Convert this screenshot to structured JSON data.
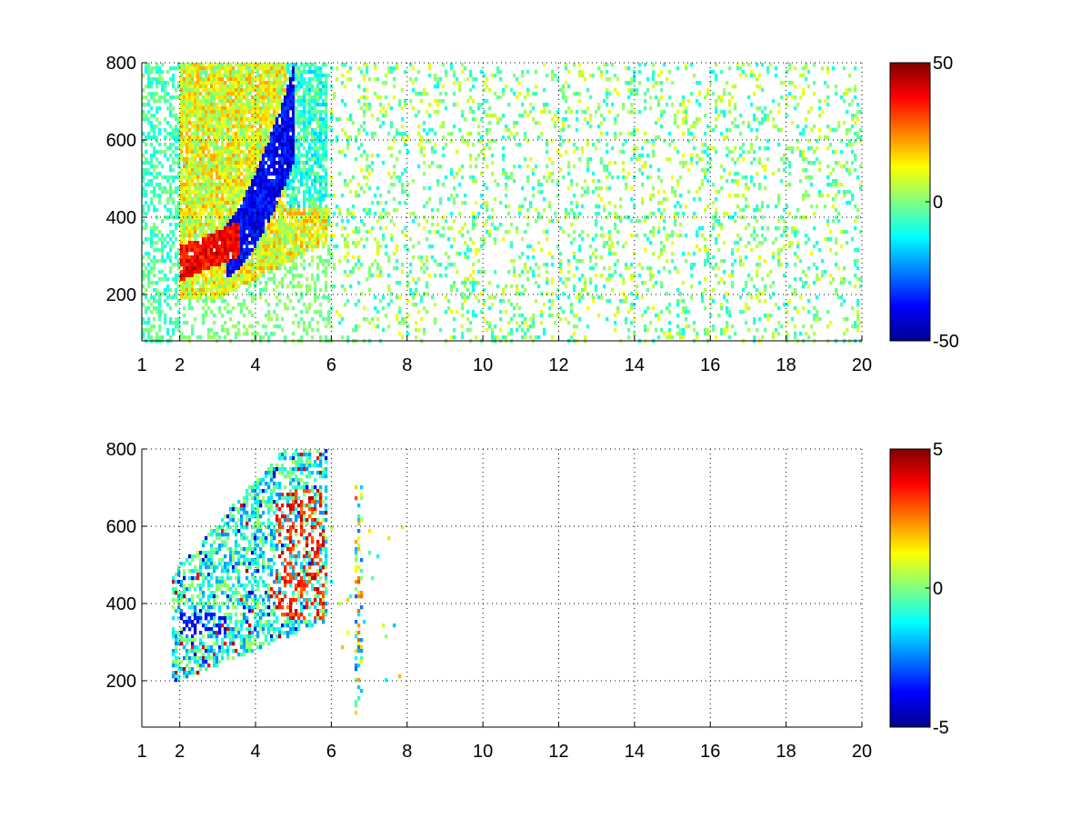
{
  "figure": {
    "background": "#ffffff",
    "colormap": "jet"
  },
  "chart_data": [
    {
      "type": "heatmap",
      "title": "",
      "xlabel": "",
      "ylabel": "",
      "xlim": [
        1,
        20
      ],
      "ylim": [
        80,
        800
      ],
      "x_ticks": [
        1,
        2,
        4,
        6,
        8,
        10,
        12,
        14,
        16,
        18,
        20
      ],
      "x_tick_labels": [
        "1",
        "2",
        "4",
        "6",
        "8",
        "10",
        "12",
        "14",
        "16",
        "18",
        "20"
      ],
      "y_ticks": [
        200,
        400,
        600,
        800
      ],
      "y_tick_labels": [
        "200",
        "400",
        "600",
        "800"
      ],
      "grid": true,
      "colorbar": {
        "range": [
          -50,
          50
        ],
        "ticks": [
          50,
          0,
          -50
        ],
        "tick_labels": [
          "50",
          "0",
          "-50"
        ]
      },
      "features": [
        {
          "region": "positive ridge",
          "x_range": [
            2.0,
            3.5
          ],
          "y_range": [
            240,
            360
          ],
          "approx_value": 45
        },
        {
          "region": "negative band",
          "x_range": [
            3.2,
            5.0
          ],
          "y_range": [
            260,
            560
          ],
          "approx_value": -45
        },
        {
          "region": "sparse noise",
          "x_range": [
            6,
            20
          ],
          "y_range": [
            80,
            800
          ],
          "approx_value": 0
        }
      ]
    },
    {
      "type": "heatmap",
      "title": "",
      "xlabel": "",
      "ylabel": "",
      "xlim": [
        1,
        20
      ],
      "ylim": [
        80,
        800
      ],
      "x_ticks": [
        1,
        2,
        4,
        6,
        8,
        10,
        12,
        14,
        16,
        18,
        20
      ],
      "x_tick_labels": [
        "1",
        "2",
        "4",
        "6",
        "8",
        "10",
        "12",
        "14",
        "16",
        "18",
        "20"
      ],
      "y_ticks": [
        200,
        400,
        600,
        800
      ],
      "y_tick_labels": [
        "200",
        "400",
        "600",
        "800"
      ],
      "grid": true,
      "colorbar": {
        "range": [
          -5,
          5
        ],
        "ticks": [
          5,
          0,
          -5
        ],
        "tick_labels": [
          "5",
          "0",
          "-5"
        ]
      },
      "features": [
        {
          "region": "negative band",
          "x_range": [
            2.0,
            3.2
          ],
          "y_range": [
            320,
            380
          ],
          "approx_value": -5
        },
        {
          "region": "positive edge",
          "x_range": [
            4.5,
            5.8
          ],
          "y_range": [
            360,
            700
          ],
          "approx_value": 4
        },
        {
          "region": "near-zero cloud",
          "x_range": [
            1.8,
            5.0
          ],
          "y_range": [
            200,
            800
          ],
          "approx_value": 0
        },
        {
          "region": "isolated column",
          "x_range": [
            6.6,
            6.8
          ],
          "y_range": [
            100,
            720
          ],
          "approx_value": 0
        }
      ]
    }
  ]
}
